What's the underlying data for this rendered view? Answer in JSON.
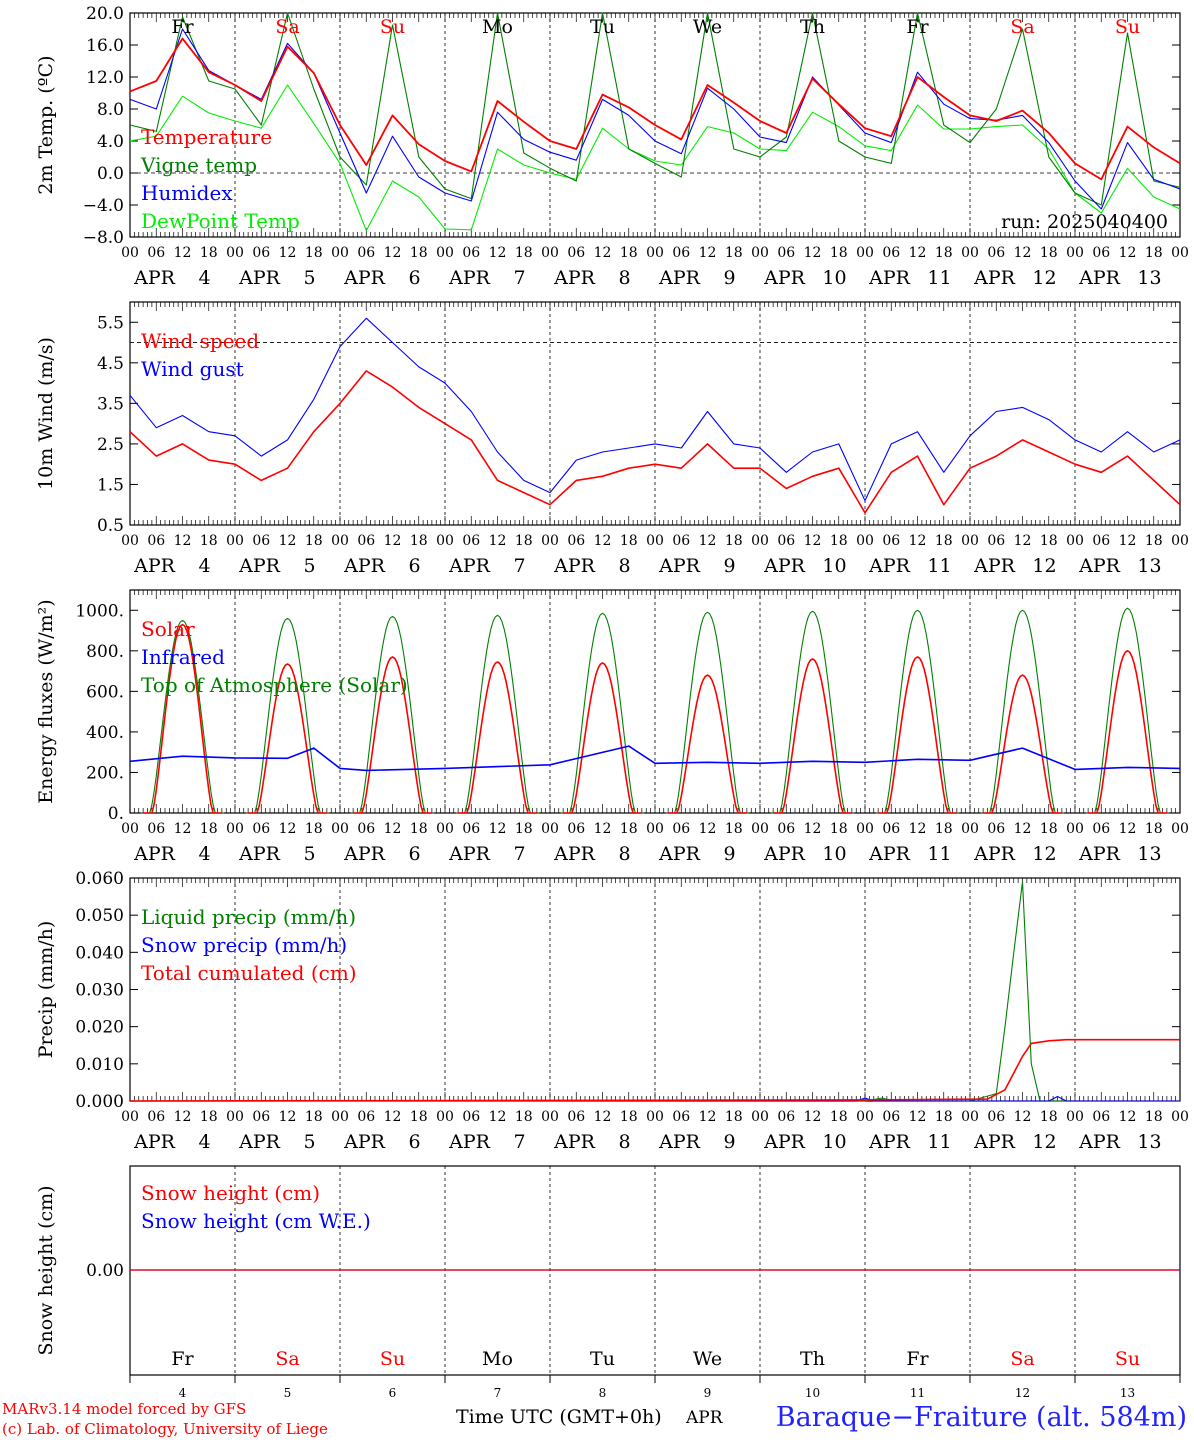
{
  "meteogram": {
    "days": [
      "4",
      "5",
      "6",
      "7",
      "8",
      "9",
      "10",
      "11",
      "12",
      "13"
    ],
    "month": "APR",
    "hour_ticks": [
      "00",
      "06",
      "12",
      "18"
    ],
    "hour_end": "00",
    "weekdays": [
      {
        "label": "Fr",
        "color": "#000000"
      },
      {
        "label": "Sa",
        "color": "#ff0000"
      },
      {
        "label": "Su",
        "color": "#ff0000"
      },
      {
        "label": "Mo",
        "color": "#000000"
      },
      {
        "label": "Tu",
        "color": "#000000"
      },
      {
        "label": "We",
        "color": "#000000"
      },
      {
        "label": "Th",
        "color": "#000000"
      },
      {
        "label": "Fr",
        "color": "#000000"
      },
      {
        "label": "Sa",
        "color": "#ff0000"
      },
      {
        "label": "Su",
        "color": "#ff0000"
      }
    ],
    "run_label": "run: 2025040400",
    "footer": {
      "model_line": "MARv3.14 model forced by GFS",
      "lab_line": "(c) Lab. of Climatology, University of Liege",
      "time_label": "Time UTC (GMT+0h)",
      "month_label": "APR",
      "station": "Baraque−Fraiture (alt. 584m)"
    }
  },
  "chart_data": [
    {
      "type": "line",
      "ylabel": "2m Temp. (ºC)",
      "ylim": [
        -8,
        20
      ],
      "yticks": [
        -8,
        -4,
        0,
        4,
        8,
        12,
        16,
        20
      ],
      "ytick_labels": [
        "−8.0",
        "−4.0",
        "0.0",
        "4.0",
        "8.0",
        "12.0",
        "16.0",
        "20.0"
      ],
      "x_unit": "hours since APR 4 00 UTC",
      "reference_line": 0,
      "legend_position": "left",
      "series": [
        {
          "name": "Temperature",
          "color": "#ff0000",
          "x": [
            0,
            6,
            12,
            18,
            24,
            30,
            36,
            42,
            48,
            54,
            60,
            66,
            72,
            78,
            84,
            90,
            96,
            102,
            108,
            114,
            120,
            126,
            132,
            138,
            144,
            150,
            156,
            162,
            168,
            174,
            180,
            186,
            192,
            198,
            204,
            210,
            216,
            222,
            228,
            234,
            240
          ],
          "y": [
            10.2,
            11.5,
            16.8,
            12.6,
            11.0,
            9.0,
            15.8,
            12.5,
            6.0,
            1.0,
            7.2,
            3.6,
            1.5,
            0.2,
            9.0,
            6.4,
            4.0,
            3.0,
            9.8,
            8.2,
            6.0,
            4.2,
            11.0,
            8.8,
            6.5,
            5.0,
            11.8,
            8.6,
            5.6,
            4.6,
            12.0,
            9.5,
            7.2,
            6.5,
            7.8,
            5.0,
            1.2,
            -0.8,
            5.8,
            3.2,
            1.2
          ]
        },
        {
          "name": "Vigne temp",
          "color": "#008000",
          "x": [
            0,
            6,
            12,
            18,
            24,
            30,
            36,
            42,
            48,
            54,
            60,
            66,
            72,
            78,
            84,
            90,
            96,
            102,
            108,
            114,
            120,
            126,
            132,
            138,
            144,
            150,
            156,
            162,
            168,
            174,
            180,
            186,
            192,
            198,
            204,
            210,
            216,
            222,
            228,
            234,
            240
          ],
          "y": [
            6.0,
            5.2,
            19.5,
            11.5,
            10.5,
            6.0,
            20.0,
            10.5,
            2.0,
            -1.5,
            18.5,
            2.0,
            -2.0,
            -3.2,
            20.0,
            2.5,
            0.6,
            -1.0,
            20.0,
            3.0,
            1.2,
            -0.5,
            20.0,
            3.0,
            2.0,
            4.5,
            20.0,
            4.0,
            2.0,
            1.2,
            20.0,
            6.0,
            3.8,
            8.0,
            18.0,
            2.0,
            -2.5,
            -4.0,
            17.5,
            -1.0,
            -1.8
          ]
        },
        {
          "name": "Humidex",
          "color": "#0000ff",
          "x": [
            0,
            6,
            12,
            18,
            24,
            30,
            36,
            42,
            48,
            54,
            60,
            66,
            72,
            78,
            84,
            90,
            96,
            102,
            108,
            114,
            120,
            126,
            132,
            138,
            144,
            150,
            156,
            162,
            168,
            174,
            180,
            186,
            192,
            198,
            204,
            210,
            216,
            222,
            228,
            234,
            240
          ],
          "y": [
            9.2,
            8.0,
            18.0,
            12.8,
            11.0,
            9.2,
            16.2,
            12.5,
            5.0,
            -2.5,
            4.6,
            -0.5,
            -2.5,
            -3.5,
            7.6,
            4.2,
            2.6,
            1.6,
            9.2,
            7.2,
            4.0,
            2.4,
            10.6,
            8.0,
            4.5,
            3.8,
            12.0,
            8.5,
            5.0,
            3.8,
            12.6,
            8.6,
            6.8,
            6.6,
            7.2,
            3.8,
            -1.0,
            -4.5,
            3.8,
            -0.8,
            -2.0
          ]
        },
        {
          "name": "DewPoint Temp",
          "color": "#00ee00",
          "x": [
            0,
            6,
            12,
            18,
            24,
            30,
            36,
            42,
            48,
            54,
            60,
            66,
            72,
            78,
            84,
            90,
            96,
            102,
            108,
            114,
            120,
            126,
            132,
            138,
            144,
            150,
            156,
            162,
            168,
            174,
            180,
            186,
            192,
            198,
            204,
            210,
            216,
            222,
            228,
            234,
            240
          ],
          "y": [
            4.0,
            4.6,
            9.6,
            7.5,
            6.5,
            5.6,
            11.0,
            6.2,
            1.2,
            -7.2,
            -1.0,
            -3.0,
            -7.0,
            -7.1,
            3.0,
            1.0,
            0.0,
            -0.8,
            5.6,
            3.0,
            1.5,
            1.0,
            5.8,
            5.0,
            3.0,
            2.8,
            7.6,
            5.8,
            3.4,
            2.8,
            8.5,
            5.5,
            5.5,
            5.8,
            6.0,
            3.0,
            -2.5,
            -5.0,
            0.6,
            -3.0,
            -4.5
          ]
        }
      ]
    },
    {
      "type": "line",
      "ylabel": "10m Wind (m/s)",
      "ylim": [
        0.5,
        6.0
      ],
      "yticks": [
        0.5,
        1.5,
        2.5,
        3.5,
        4.5,
        5.5
      ],
      "ytick_labels": [
        "0.5",
        "1.5",
        "2.5",
        "3.5",
        "4.5",
        "5.5"
      ],
      "x_unit": "hours since APR 4 00 UTC",
      "reference_line": 5.0,
      "legend_position": "left",
      "series": [
        {
          "name": "Wind speed",
          "color": "#ff0000",
          "x": [
            0,
            6,
            12,
            18,
            24,
            30,
            36,
            42,
            48,
            54,
            60,
            66,
            72,
            78,
            84,
            90,
            96,
            102,
            108,
            114,
            120,
            126,
            132,
            138,
            144,
            150,
            156,
            162,
            168,
            174,
            180,
            186,
            192,
            198,
            204,
            210,
            216,
            222,
            228,
            234,
            240
          ],
          "y": [
            2.8,
            2.2,
            2.5,
            2.1,
            2.0,
            1.6,
            1.9,
            2.8,
            3.5,
            4.3,
            3.9,
            3.4,
            3.0,
            2.6,
            1.6,
            1.3,
            1.0,
            1.6,
            1.7,
            1.9,
            2.0,
            1.9,
            2.5,
            1.9,
            1.9,
            1.4,
            1.7,
            1.9,
            0.8,
            1.8,
            2.2,
            1.0,
            1.9,
            2.2,
            2.6,
            2.3,
            2.0,
            1.8,
            2.2,
            1.6,
            1.0
          ]
        },
        {
          "name": "Wind gust",
          "color": "#0000ff",
          "x": [
            0,
            6,
            12,
            18,
            24,
            30,
            36,
            42,
            48,
            54,
            60,
            66,
            72,
            78,
            84,
            90,
            96,
            102,
            108,
            114,
            120,
            126,
            132,
            138,
            144,
            150,
            156,
            162,
            168,
            174,
            180,
            186,
            192,
            198,
            204,
            210,
            216,
            222,
            228,
            234,
            240
          ],
          "y": [
            3.7,
            2.9,
            3.2,
            2.8,
            2.7,
            2.2,
            2.6,
            3.6,
            4.9,
            5.6,
            5.0,
            4.4,
            4.0,
            3.3,
            2.3,
            1.6,
            1.3,
            2.1,
            2.3,
            2.4,
            2.5,
            2.4,
            3.3,
            2.5,
            2.4,
            1.8,
            2.3,
            2.5,
            1.1,
            2.5,
            2.8,
            1.8,
            2.7,
            3.3,
            3.4,
            3.1,
            2.6,
            2.3,
            2.8,
            2.3,
            2.6
          ]
        }
      ]
    },
    {
      "type": "line",
      "ylabel": "Energy fluxes (W/m²)",
      "ylim": [
        0,
        1100
      ],
      "yticks": [
        0,
        200,
        400,
        600,
        800,
        1000
      ],
      "ytick_labels": [
        "0.",
        "200.",
        "400.",
        "600.",
        "800.",
        "1000."
      ],
      "x_unit": "hours since APR 4 00 UTC",
      "legend_position": "left",
      "series": [
        {
          "name": "Solar",
          "color": "#ff0000",
          "daily_peak": [
            930,
            735,
            770,
            745,
            740,
            680,
            760,
            770,
            680,
            800
          ]
        },
        {
          "name": "Infrared",
          "color": "#0000ff",
          "x": [
            0,
            12,
            24,
            36,
            42,
            48,
            54,
            72,
            96,
            114,
            120,
            132,
            144,
            156,
            168,
            180,
            192,
            204,
            216,
            228,
            240
          ],
          "y": [
            255,
            280,
            272,
            270,
            320,
            220,
            210,
            220,
            238,
            330,
            245,
            250,
            245,
            255,
            250,
            265,
            260,
            320,
            215,
            225,
            220
          ]
        },
        {
          "name": "Top of Atmosphere (Solar)",
          "color": "#008000",
          "daily_peak": [
            950,
            960,
            970,
            975,
            985,
            990,
            995,
            1000,
            1000,
            1010
          ]
        }
      ]
    },
    {
      "type": "line",
      "ylabel": "Precip (mm/h)",
      "ylim": [
        0,
        0.06
      ],
      "yticks": [
        0,
        0.01,
        0.02,
        0.03,
        0.04,
        0.05,
        0.06
      ],
      "ytick_labels": [
        "0.000",
        "0.010",
        "0.020",
        "0.030",
        "0.040",
        "0.050",
        "0.060"
      ],
      "x_unit": "hours since APR 4 00 UTC",
      "legend_position": "left",
      "series": [
        {
          "name": "Liquid precip (mm/h)",
          "color": "#008000",
          "x": [
            0,
            168,
            172,
            174,
            192,
            198,
            200,
            202,
            204,
            206,
            208,
            210,
            240
          ],
          "y": [
            0,
            0,
            0.0008,
            0,
            0,
            0.002,
            0.02,
            0.04,
            0.059,
            0.01,
            0,
            0,
            0
          ]
        },
        {
          "name": "Snow precip (mm/h)",
          "color": "#0000ff",
          "x": [
            0,
            166,
            168,
            170,
            210,
            212,
            214,
            240
          ],
          "y": [
            0,
            0,
            0.0008,
            0,
            0,
            0.0012,
            0,
            0
          ]
        },
        {
          "name": "Total cumulated (cm)",
          "color": "#ff0000",
          "x": [
            0,
            168,
            196,
            200,
            204,
            206,
            210,
            214,
            240
          ],
          "y": [
            0,
            0.0003,
            0.0005,
            0.003,
            0.012,
            0.0155,
            0.0162,
            0.0165,
            0.0165
          ]
        }
      ]
    },
    {
      "type": "line",
      "ylabel": "Snow height (cm)",
      "ytick_labels": [
        "0.00"
      ],
      "x_unit": "hours since APR 4 00 UTC",
      "legend_position": "left",
      "series": [
        {
          "name": "Snow height (cm)",
          "color": "#ff0000",
          "x": [
            0,
            240
          ],
          "y": [
            0,
            0
          ]
        },
        {
          "name": "Snow height (cm W.E.)",
          "color": "#0000ff",
          "x": [
            0,
            240
          ],
          "y": [
            0,
            0
          ]
        }
      ]
    }
  ]
}
